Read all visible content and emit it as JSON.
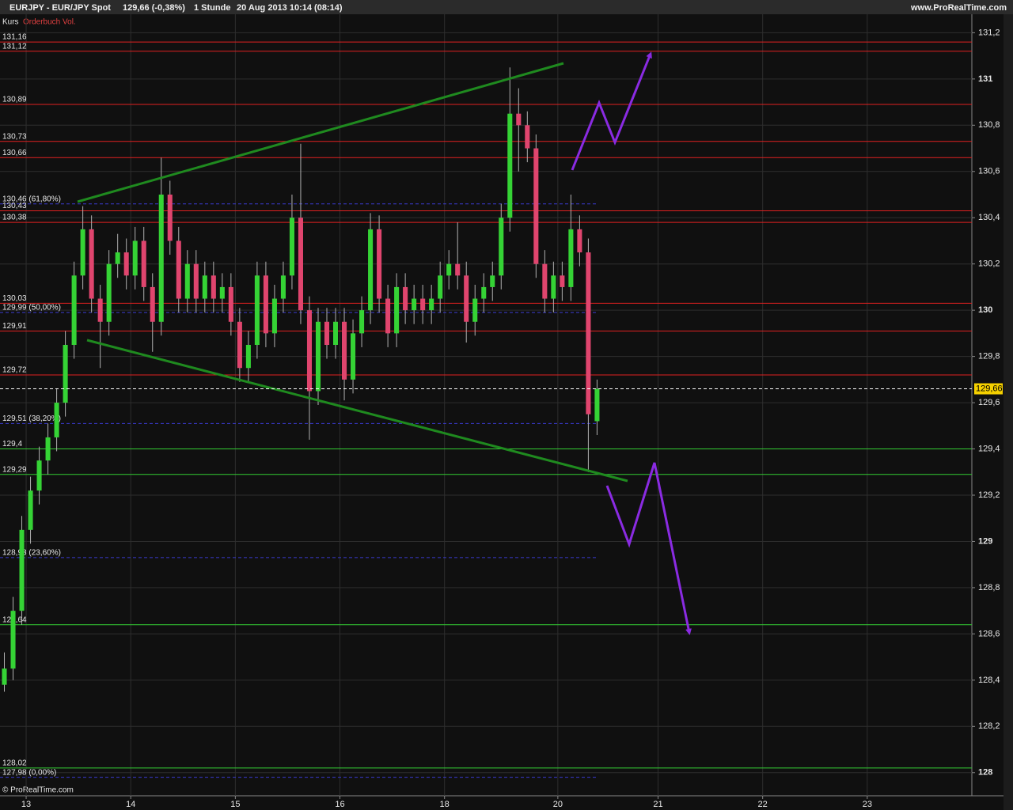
{
  "header": {
    "symbol": "EURJPY - EUR/JPY Spot",
    "quote": "129,66 (-0,38%)",
    "interval": "1 Stunde",
    "time": "20 Aug 2013 10:14 (08:14)",
    "site": "www.ProRealTime.com",
    "indicator_kurs": "Kurs",
    "indicator_vol": "Orderbuch Vol.",
    "copyright": "© ProRealTime.com"
  },
  "chart_data": {
    "type": "candlestick",
    "x": [
      0,
      2,
      4,
      6,
      8,
      10,
      12,
      14,
      16,
      18,
      20,
      22,
      24,
      26,
      28,
      30,
      32,
      34,
      36,
      38,
      40,
      42,
      44,
      46,
      48,
      50,
      52,
      54,
      56,
      58,
      60,
      62,
      64,
      66,
      68,
      70,
      72,
      74,
      76,
      78,
      80,
      82,
      84,
      86,
      88,
      90,
      92,
      94,
      96,
      98,
      100,
      102,
      104,
      106,
      108,
      110,
      112,
      114,
      116,
      118,
      120,
      122,
      124,
      126,
      128,
      130,
      132,
      134,
      136
    ],
    "open": [
      128.38,
      128.45,
      128.7,
      129.05,
      129.22,
      129.35,
      129.45,
      129.6,
      129.85,
      130.15,
      130.35,
      130.05,
      129.95,
      130.2,
      130.25,
      130.15,
      130.3,
      130.1,
      129.95,
      130.5,
      130.3,
      130.05,
      130.2,
      130.05,
      130.15,
      130.05,
      130.1,
      129.95,
      129.75,
      129.85,
      130.15,
      129.9,
      130.05,
      130.15,
      130.4,
      130.0,
      129.65,
      129.95,
      129.85,
      129.95,
      129.7,
      129.9,
      130.0,
      130.35,
      130.05,
      129.9,
      130.1,
      130.0,
      130.05,
      130.0,
      130.05,
      130.15,
      130.2,
      130.15,
      129.95,
      130.05,
      130.1,
      130.15,
      130.4,
      130.85,
      130.8,
      130.7,
      130.2,
      130.05,
      130.15,
      130.1,
      130.35,
      130.25,
      129.52
    ],
    "high": [
      128.52,
      128.76,
      129.11,
      129.28,
      129.41,
      129.51,
      129.66,
      129.91,
      130.21,
      130.45,
      130.41,
      130.11,
      130.26,
      130.33,
      130.31,
      130.36,
      130.36,
      130.16,
      130.66,
      130.56,
      130.36,
      130.26,
      130.26,
      130.21,
      130.21,
      130.16,
      130.16,
      130.01,
      129.91,
      130.21,
      130.21,
      130.11,
      130.21,
      130.5,
      130.72,
      130.06,
      130.01,
      130.01,
      130.01,
      130.01,
      129.96,
      130.06,
      130.42,
      130.41,
      130.11,
      130.16,
      130.16,
      130.11,
      130.11,
      130.11,
      130.21,
      130.26,
      130.38,
      130.21,
      130.11,
      130.16,
      130.21,
      130.46,
      131.05,
      130.96,
      130.86,
      130.76,
      130.26,
      130.21,
      130.21,
      130.5,
      130.41,
      130.31,
      129.7
    ],
    "low": [
      128.35,
      128.4,
      128.64,
      128.99,
      129.16,
      129.29,
      129.39,
      129.54,
      129.79,
      130.09,
      129.99,
      129.75,
      129.89,
      130.14,
      130.09,
      130.09,
      130.04,
      129.82,
      129.89,
      130.24,
      129.99,
      129.99,
      129.99,
      129.99,
      129.99,
      129.99,
      129.89,
      129.69,
      129.69,
      129.79,
      129.84,
      129.84,
      129.99,
      130.09,
      129.94,
      129.44,
      129.59,
      129.79,
      129.79,
      129.61,
      129.64,
      129.84,
      129.94,
      129.99,
      129.84,
      129.84,
      129.94,
      129.94,
      129.94,
      129.94,
      129.99,
      130.09,
      130.09,
      129.86,
      129.89,
      129.99,
      130.04,
      130.09,
      130.34,
      130.6,
      130.64,
      130.14,
      129.99,
      129.99,
      130.04,
      130.04,
      130.19,
      129.3,
      129.46
    ],
    "close": [
      128.45,
      128.7,
      129.05,
      129.22,
      129.35,
      129.45,
      129.6,
      129.85,
      130.15,
      130.35,
      130.05,
      129.95,
      130.2,
      130.25,
      130.15,
      130.3,
      130.1,
      129.95,
      130.5,
      130.3,
      130.05,
      130.2,
      130.05,
      130.15,
      130.05,
      130.1,
      129.95,
      129.75,
      129.85,
      130.15,
      129.9,
      130.05,
      130.15,
      130.4,
      130.0,
      129.65,
      129.95,
      129.85,
      129.95,
      129.7,
      129.9,
      130.0,
      130.35,
      130.05,
      129.9,
      130.1,
      130.0,
      130.05,
      130.0,
      130.05,
      130.15,
      130.2,
      130.15,
      129.95,
      130.05,
      130.1,
      130.15,
      130.4,
      130.85,
      130.8,
      130.7,
      130.2,
      130.05,
      130.15,
      130.1,
      130.35,
      130.25,
      129.55,
      129.66
    ],
    "up_color": "#35d335",
    "down_color": "#e0456e",
    "xlim": [
      -1,
      222
    ],
    "xticks": [
      {
        "value": 5,
        "label": "13"
      },
      {
        "value": 29,
        "label": "14"
      },
      {
        "value": 53,
        "label": "15"
      },
      {
        "value": 77,
        "label": "16"
      },
      {
        "value": 101,
        "label": "18"
      },
      {
        "value": 127,
        "label": "20"
      },
      {
        "value": 150,
        "label": "21"
      },
      {
        "value": 174,
        "label": "22"
      },
      {
        "value": 198,
        "label": "23"
      }
    ],
    "ylim": [
      127.9,
      131.28
    ],
    "yticks": [
      128,
      {
        "value": 128.2,
        "label": "128,2"
      },
      {
        "value": 128.4,
        "label": "128,4"
      },
      {
        "value": 128.6,
        "label": "128,6"
      },
      {
        "value": 128.8,
        "label": "128,8"
      },
      129,
      {
        "value": 129.2,
        "label": "129,2"
      },
      {
        "value": 129.4,
        "label": "129,4"
      },
      {
        "value": 129.6,
        "label": "129,6"
      },
      {
        "value": 129.8,
        "label": "129,8"
      },
      130,
      {
        "value": 130.2,
        "label": "130,2"
      },
      {
        "value": 130.4,
        "label": "130,4"
      },
      {
        "value": 130.6,
        "label": "130,6"
      },
      {
        "value": 130.8,
        "label": "130,8"
      },
      131,
      {
        "value": 131.2,
        "label": "131,2"
      }
    ],
    "grid": true,
    "levels": [
      {
        "value": 131.16,
        "label": "131,16",
        "color": "#e02020"
      },
      {
        "value": 131.12,
        "label": "131,12",
        "color": "#e02020"
      },
      {
        "value": 130.89,
        "label": "130,89",
        "color": "#e02020"
      },
      {
        "value": 130.73,
        "label": "130,73",
        "color": "#e02020"
      },
      {
        "value": 130.66,
        "label": "130,66",
        "color": "#e02020"
      },
      {
        "value": 130.46,
        "label": "130,46 (61,80%)",
        "color": "#3a3ad0"
      },
      {
        "value": 130.43,
        "label": "130,43",
        "color": "#e02020"
      },
      {
        "value": 130.38,
        "label": "130,38",
        "color": "#e02020"
      },
      {
        "value": 130.03,
        "label": "130,03",
        "color": "#e02020"
      },
      {
        "value": 129.99,
        "label": "129,99 (50,00%)",
        "color": "#3a3ad0"
      },
      {
        "value": 129.91,
        "label": "129,91",
        "color": "#e02020"
      },
      {
        "value": 129.72,
        "label": "129,72",
        "color": "#e02020"
      },
      {
        "value": 129.51,
        "label": "129,51 (38,20%)",
        "color": "#3a3ad0"
      },
      {
        "value": 129.4,
        "label": "129,4",
        "color": "#33cc33"
      },
      {
        "value": 129.29,
        "label": "129,29",
        "color": "#33cc33"
      },
      {
        "value": 128.93,
        "label": "128,93 (23,60%)",
        "color": "#3a3ad0"
      },
      {
        "value": 128.64,
        "label": "128,64",
        "color": "#33cc33"
      },
      {
        "value": 128.02,
        "label": "128,02",
        "color": "#33cc33"
      },
      {
        "value": 127.98,
        "label": "127,98 (0,00%)",
        "color": "#3a3ad0"
      }
    ],
    "last_price": {
      "value": 129.66,
      "label": "129,66"
    }
  }
}
